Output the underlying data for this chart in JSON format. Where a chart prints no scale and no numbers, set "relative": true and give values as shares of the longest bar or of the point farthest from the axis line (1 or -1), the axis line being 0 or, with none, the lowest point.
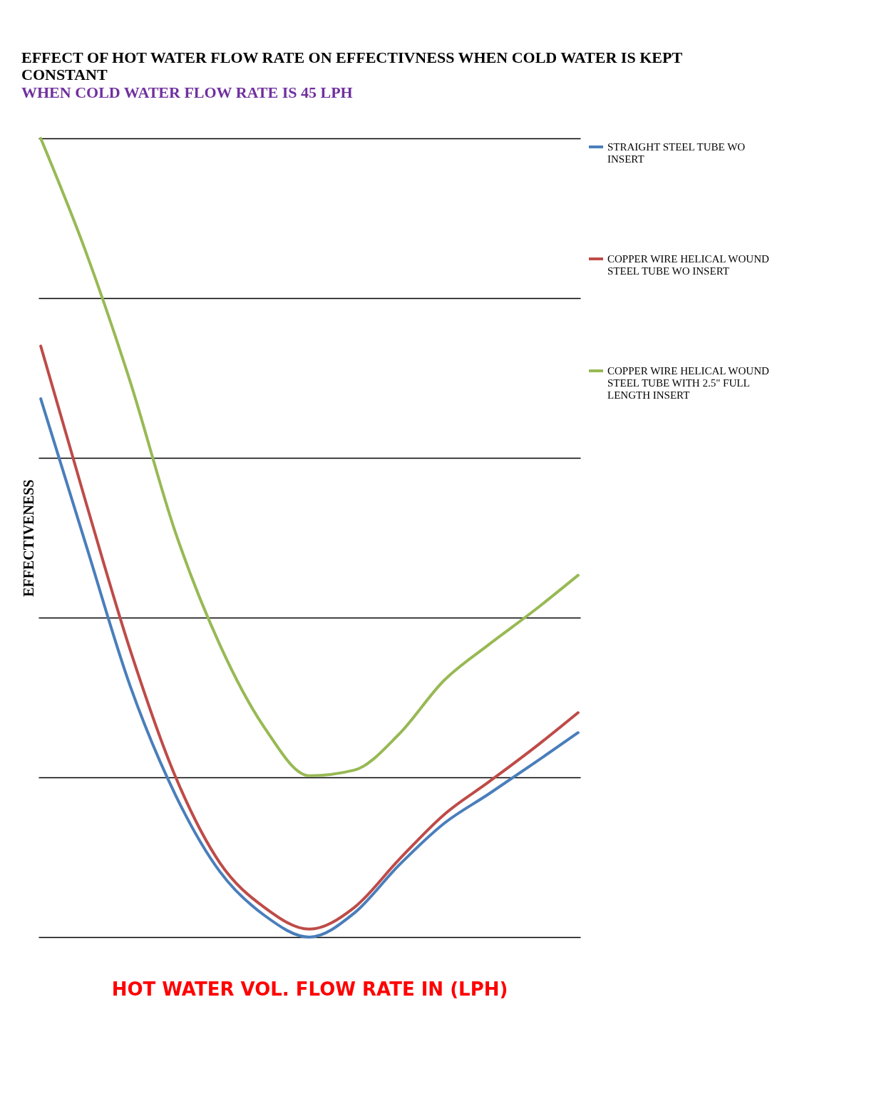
{
  "chart_data": {
    "type": "line",
    "title": "EFFECT OF HOT WATER FLOW RATE ON EFFECTIVNESS WHEN COLD WATER IS KEPT CONSTANT",
    "subtitle": "WHEN COLD WATER FLOW RATE IS 45 LPH",
    "xlabel": "HOT  WATER VOL.  FLOW RATE  IN (LPH)",
    "ylabel": "EFFECTIVENESS",
    "relative": true,
    "categories": [
      null,
      null,
      null,
      null,
      null,
      null,
      null,
      null,
      null,
      null,
      null,
      null,
      null
    ],
    "series": [
      {
        "name": "STRAIGHT STEEL TUBE WO INSERT",
        "color": "#4a7ebb",
        "values": [
          0.674,
          0.493,
          0.314,
          0.179,
          0.082,
          0.027,
          0,
          0.03,
          0.09,
          0.142,
          0.179,
          0.217,
          0.256
        ]
      },
      {
        "name": "COPPER WIRE HELICAL WOUND STEEL TUBE WO INSERT",
        "color": "#be4b48",
        "values": [
          0.74,
          0.546,
          0.359,
          0.202,
          0.093,
          0.037,
          0.01,
          0.037,
          0.097,
          0.153,
          0.194,
          0.236,
          0.281
        ]
      },
      {
        "name": "COPPER WIRE HELICAL WOUND STEEL TUBE WITH 2.5\" FULL LENGTH INSERT",
        "color": "#98b954",
        "values": [
          1,
          0.859,
          0.695,
          0.508,
          0.366,
          0.262,
          0.202,
          0.209,
          0.254,
          0.321,
          0.366,
          0.408,
          0.453
        ]
      }
    ],
    "grid": "y",
    "legend": "right",
    "marker": "none",
    "line_style": "solid"
  }
}
